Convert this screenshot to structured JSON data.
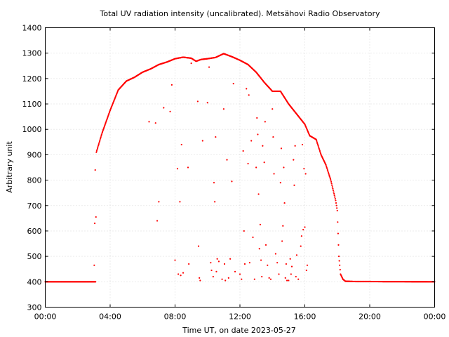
{
  "chart_data": {
    "type": "scatter",
    "title": "Total UV radiation intensity (uncalibrated). Metsähovi Radio Observatory",
    "xlabel": "Time UT, on date 2023-05-27",
    "ylabel": "Arbitrary unit",
    "xlim": [
      0,
      24
    ],
    "ylim": [
      300,
      1400
    ],
    "grid": true,
    "x_ticks": [
      {
        "value": 0,
        "label": "00:00"
      },
      {
        "value": 4,
        "label": "04:00"
      },
      {
        "value": 8,
        "label": "08:00"
      },
      {
        "value": 12,
        "label": "12:00"
      },
      {
        "value": 16,
        "label": "16:00"
      },
      {
        "value": 20,
        "label": "20:00"
      },
      {
        "value": 24,
        "label": "00:00"
      }
    ],
    "y_ticks": [
      300,
      400,
      500,
      600,
      700,
      800,
      900,
      1000,
      1100,
      1200,
      1300,
      1400
    ],
    "series_color": "#ff0000",
    "envelope": [
      [
        0.0,
        400
      ],
      [
        3.1,
        400
      ],
      [
        3.15,
        910
      ],
      [
        3.5,
        985
      ],
      [
        4.0,
        1075
      ],
      [
        4.5,
        1155
      ],
      [
        5.0,
        1190
      ],
      [
        5.5,
        1205
      ],
      [
        6.0,
        1225
      ],
      [
        6.5,
        1238
      ],
      [
        7.0,
        1255
      ],
      [
        7.5,
        1265
      ],
      [
        8.0,
        1278
      ],
      [
        8.5,
        1284
      ],
      [
        9.0,
        1280
      ],
      [
        9.3,
        1268
      ],
      [
        9.6,
        1275
      ],
      [
        10.0,
        1278
      ],
      [
        10.5,
        1283
      ],
      [
        11.0,
        1298
      ],
      [
        11.5,
        1286
      ],
      [
        12.0,
        1272
      ],
      [
        12.5,
        1255
      ],
      [
        13.0,
        1225
      ],
      [
        13.5,
        1185
      ],
      [
        14.0,
        1150
      ],
      [
        14.5,
        1150
      ],
      [
        15.0,
        1100
      ],
      [
        15.5,
        1060
      ],
      [
        16.0,
        1020
      ],
      [
        16.3,
        975
      ],
      [
        16.7,
        960
      ],
      [
        17.0,
        900
      ],
      [
        17.3,
        860
      ],
      [
        17.6,
        800
      ],
      [
        17.9,
        720
      ],
      [
        18.0,
        680
      ],
      [
        18.1,
        500
      ],
      [
        18.2,
        430
      ],
      [
        18.35,
        410
      ],
      [
        18.5,
        402
      ],
      [
        19.0,
        401
      ],
      [
        24.0,
        400
      ]
    ],
    "scatter_points": [
      [
        3.02,
        465
      ],
      [
        3.05,
        630
      ],
      [
        3.08,
        840
      ],
      [
        6.4,
        1030
      ],
      [
        6.8,
        1025
      ],
      [
        6.9,
        640
      ],
      [
        7.0,
        715
      ],
      [
        7.3,
        1085
      ],
      [
        7.7,
        1070
      ],
      [
        7.8,
        1175
      ],
      [
        8.0,
        485
      ],
      [
        8.15,
        845
      ],
      [
        8.2,
        430
      ],
      [
        8.3,
        715
      ],
      [
        8.35,
        425
      ],
      [
        8.4,
        940
      ],
      [
        8.5,
        435
      ],
      [
        8.8,
        850
      ],
      [
        8.85,
        470
      ],
      [
        9.0,
        1260
      ],
      [
        9.4,
        1110
      ],
      [
        9.45,
        540
      ],
      [
        9.5,
        415
      ],
      [
        9.55,
        405
      ],
      [
        9.7,
        955
      ],
      [
        10.0,
        1105
      ],
      [
        10.1,
        1245
      ],
      [
        10.2,
        475
      ],
      [
        10.25,
        445
      ],
      [
        10.35,
        420
      ],
      [
        10.4,
        790
      ],
      [
        10.45,
        715
      ],
      [
        10.5,
        970
      ],
      [
        10.55,
        440
      ],
      [
        10.6,
        490
      ],
      [
        10.7,
        480
      ],
      [
        10.9,
        410
      ],
      [
        11.0,
        1080
      ],
      [
        11.05,
        470
      ],
      [
        11.1,
        405
      ],
      [
        11.2,
        880
      ],
      [
        11.3,
        415
      ],
      [
        11.4,
        490
      ],
      [
        11.5,
        795
      ],
      [
        11.6,
        1180
      ],
      [
        11.7,
        440
      ],
      [
        12.0,
        430
      ],
      [
        12.1,
        410
      ],
      [
        12.2,
        915
      ],
      [
        12.25,
        600
      ],
      [
        12.3,
        470
      ],
      [
        12.4,
        1160
      ],
      [
        12.5,
        865
      ],
      [
        12.55,
        1135
      ],
      [
        12.6,
        475
      ],
      [
        12.7,
        955
      ],
      [
        12.8,
        575
      ],
      [
        12.9,
        410
      ],
      [
        13.0,
        850
      ],
      [
        13.05,
        1045
      ],
      [
        13.1,
        980
      ],
      [
        13.15,
        745
      ],
      [
        13.2,
        530
      ],
      [
        13.25,
        625
      ],
      [
        13.3,
        485
      ],
      [
        13.35,
        420
      ],
      [
        13.4,
        935
      ],
      [
        13.5,
        870
      ],
      [
        13.55,
        1030
      ],
      [
        13.6,
        545
      ],
      [
        13.7,
        465
      ],
      [
        13.8,
        415
      ],
      [
        13.9,
        410
      ],
      [
        14.0,
        1080
      ],
      [
        14.05,
        970
      ],
      [
        14.1,
        825
      ],
      [
        14.2,
        510
      ],
      [
        14.3,
        475
      ],
      [
        14.4,
        430
      ],
      [
        14.5,
        790
      ],
      [
        14.55,
        925
      ],
      [
        14.6,
        560
      ],
      [
        14.65,
        620
      ],
      [
        14.7,
        850
      ],
      [
        14.75,
        710
      ],
      [
        14.8,
        415
      ],
      [
        14.85,
        470
      ],
      [
        14.9,
        405
      ],
      [
        15.0,
        405
      ],
      [
        15.1,
        490
      ],
      [
        15.15,
        430
      ],
      [
        15.2,
        460
      ],
      [
        15.3,
        880
      ],
      [
        15.35,
        780
      ],
      [
        15.4,
        935
      ],
      [
        15.45,
        420
      ],
      [
        15.5,
        505
      ],
      [
        15.6,
        410
      ],
      [
        15.75,
        540
      ],
      [
        15.8,
        580
      ],
      [
        15.85,
        940
      ],
      [
        15.9,
        605
      ],
      [
        15.95,
        845
      ],
      [
        16.0,
        615
      ],
      [
        16.05,
        825
      ],
      [
        16.1,
        445
      ],
      [
        16.15,
        465
      ]
    ]
  }
}
